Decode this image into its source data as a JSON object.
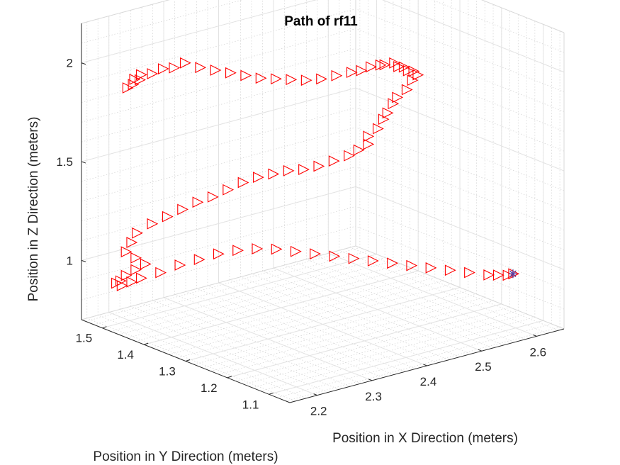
{
  "chart_data": {
    "type": "scatter3d",
    "title": "Path of rf11",
    "xlabel": "Position in X Direction (meters)",
    "ylabel": "Position in Y Direction (meters)",
    "zlabel": "Position in Z Direction (meters)",
    "xlim": [
      2.15,
      2.65
    ],
    "ylim": [
      1.05,
      1.55
    ],
    "zlim": [
      0.7,
      2.2
    ],
    "xticks": [
      "2.2",
      "2.3",
      "2.4",
      "2.5",
      "2.6"
    ],
    "yticks": [
      "1.1",
      "1.2",
      "1.3",
      "1.4",
      "1.5"
    ],
    "zticks": [
      "1",
      "1.5",
      "2"
    ],
    "grid": "on (major and minor)",
    "marker": "triangle-right",
    "marker_color": "#ff0000",
    "end_marker": "star",
    "end_marker_color": "#5a3fa0",
    "series": [
      {
        "points": [
          [
            2.18,
            1.48,
            1.91
          ],
          [
            2.19,
            1.48,
            1.92
          ],
          [
            2.2,
            1.49,
            1.93
          ],
          [
            2.21,
            1.49,
            1.92
          ],
          [
            2.22,
            1.5,
            1.93
          ],
          [
            2.24,
            1.5,
            1.92
          ],
          [
            2.26,
            1.5,
            1.93
          ],
          [
            2.28,
            1.5,
            1.92
          ],
          [
            2.3,
            1.5,
            1.93
          ],
          [
            2.32,
            1.49,
            1.9
          ],
          [
            2.34,
            1.48,
            1.88
          ],
          [
            2.36,
            1.47,
            1.86
          ],
          [
            2.38,
            1.46,
            1.84
          ],
          [
            2.4,
            1.45,
            1.82
          ],
          [
            2.42,
            1.44,
            1.81
          ],
          [
            2.44,
            1.43,
            1.8
          ],
          [
            2.46,
            1.42,
            1.79
          ],
          [
            2.48,
            1.41,
            1.79
          ],
          [
            2.5,
            1.4,
            1.8
          ],
          [
            2.52,
            1.39,
            1.81
          ],
          [
            2.53,
            1.38,
            1.82
          ],
          [
            2.54,
            1.37,
            1.84
          ],
          [
            2.55,
            1.36,
            1.85
          ],
          [
            2.55,
            1.35,
            1.86
          ],
          [
            2.56,
            1.34,
            1.87
          ],
          [
            2.56,
            1.33,
            1.86
          ],
          [
            2.57,
            1.33,
            1.85
          ],
          [
            2.57,
            1.32,
            1.84
          ],
          [
            2.58,
            1.32,
            1.83
          ],
          [
            2.58,
            1.31,
            1.82
          ],
          [
            2.57,
            1.31,
            1.8
          ],
          [
            2.56,
            1.31,
            1.76
          ],
          [
            2.55,
            1.32,
            1.72
          ],
          [
            2.55,
            1.33,
            1.68
          ],
          [
            2.54,
            1.33,
            1.64
          ],
          [
            2.54,
            1.34,
            1.6
          ],
          [
            2.53,
            1.34,
            1.56
          ],
          [
            2.52,
            1.35,
            1.52
          ],
          [
            2.52,
            1.35,
            1.48
          ],
          [
            2.51,
            1.36,
            1.45
          ],
          [
            2.5,
            1.37,
            1.42
          ],
          [
            2.48,
            1.38,
            1.4
          ],
          [
            2.46,
            1.39,
            1.38
          ],
          [
            2.44,
            1.4,
            1.37
          ],
          [
            2.42,
            1.41,
            1.37
          ],
          [
            2.4,
            1.42,
            1.36
          ],
          [
            2.38,
            1.43,
            1.35
          ],
          [
            2.36,
            1.44,
            1.33
          ],
          [
            2.34,
            1.45,
            1.3
          ],
          [
            2.32,
            1.46,
            1.27
          ],
          [
            2.3,
            1.47,
            1.25
          ],
          [
            2.28,
            1.48,
            1.22
          ],
          [
            2.26,
            1.49,
            1.19
          ],
          [
            2.24,
            1.5,
            1.16
          ],
          [
            2.22,
            1.51,
            1.12
          ],
          [
            2.21,
            1.51,
            1.08
          ],
          [
            2.2,
            1.51,
            1.04
          ],
          [
            2.21,
            1.5,
            1.01
          ],
          [
            2.22,
            1.49,
            0.98
          ],
          [
            2.21,
            1.5,
            0.95
          ],
          [
            2.2,
            1.51,
            0.92
          ],
          [
            2.19,
            1.51,
            0.9
          ],
          [
            2.19,
            1.52,
            0.88
          ],
          [
            2.2,
            1.52,
            0.86
          ],
          [
            2.21,
            1.51,
            0.88
          ],
          [
            2.22,
            1.5,
            0.9
          ],
          [
            2.24,
            1.48,
            0.93
          ],
          [
            2.26,
            1.46,
            0.97
          ],
          [
            2.28,
            1.44,
            1.0
          ],
          [
            2.3,
            1.42,
            1.03
          ],
          [
            2.32,
            1.4,
            1.05
          ],
          [
            2.34,
            1.38,
            1.06
          ],
          [
            2.36,
            1.36,
            1.06
          ],
          [
            2.38,
            1.34,
            1.05
          ],
          [
            2.4,
            1.32,
            1.04
          ],
          [
            2.42,
            1.3,
            1.03
          ],
          [
            2.44,
            1.28,
            1.02
          ],
          [
            2.46,
            1.26,
            1.01
          ],
          [
            2.48,
            1.24,
            1.0
          ],
          [
            2.5,
            1.22,
            0.99
          ],
          [
            2.52,
            1.2,
            0.98
          ],
          [
            2.54,
            1.18,
            0.97
          ],
          [
            2.56,
            1.16,
            0.96
          ],
          [
            2.58,
            1.14,
            0.95
          ],
          [
            2.59,
            1.13,
            0.95
          ],
          [
            2.6,
            1.12,
            0.95
          ],
          [
            2.61,
            1.12,
            0.95
          ]
        ]
      }
    ]
  }
}
